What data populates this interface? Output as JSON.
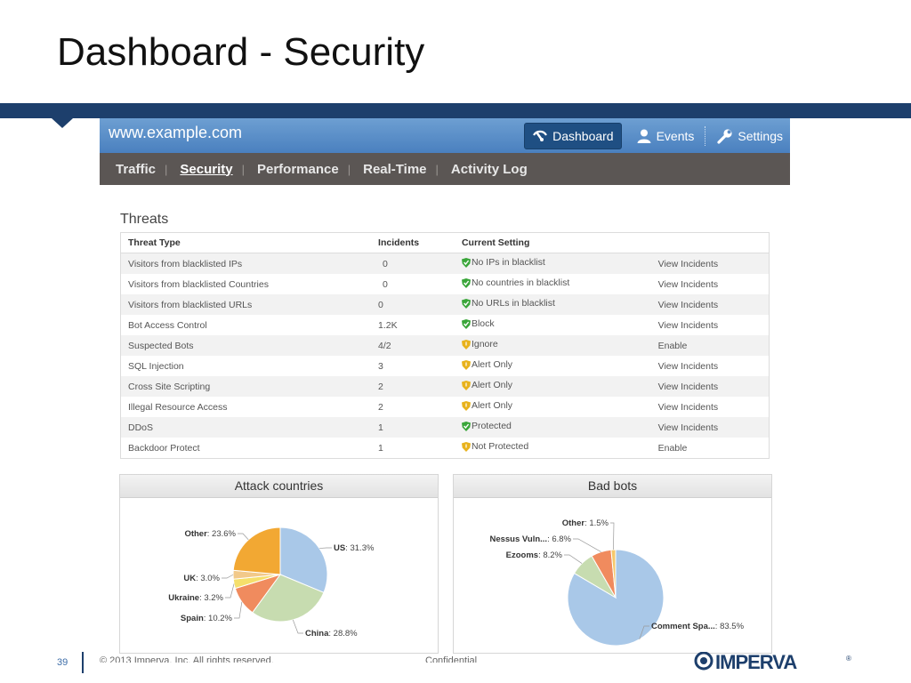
{
  "slide": {
    "title": "Dashboard - Security",
    "page_number": "39",
    "copyright": "© 2013 Imperva, Inc. All rights reserved.",
    "confidential": "Confidential",
    "logo_text": "IMPERVA"
  },
  "app": {
    "site": "www.example.com",
    "top_nav": [
      {
        "label": "Dashboard",
        "icon": "dashboard-icon",
        "active": true
      },
      {
        "label": "Events",
        "icon": "user-icon",
        "active": false
      },
      {
        "label": "Settings",
        "icon": "wrench-icon",
        "active": false
      }
    ],
    "sub_nav": [
      {
        "label": "Traffic",
        "active": false
      },
      {
        "label": "Security",
        "active": true
      },
      {
        "label": "Performance",
        "active": false
      },
      {
        "label": "Real-Time",
        "active": false
      },
      {
        "label": "Activity Log",
        "active": false
      }
    ]
  },
  "threats": {
    "title": "Threats",
    "columns": [
      "Threat Type",
      "Incidents",
      "Current Setting",
      ""
    ],
    "rows": [
      {
        "type": "Visitors from blacklisted IPs",
        "incidents": "0",
        "setting": "No IPs in blacklist",
        "status": "green",
        "action": "View Incidents"
      },
      {
        "type": "Visitors from blacklisted Countries",
        "incidents": "0",
        "setting": "No countries in blacklist",
        "status": "green",
        "action": "View Incidents"
      },
      {
        "type": "Visitors from blacklisted URLs",
        "incidents": "0",
        "setting": "No URLs in blacklist",
        "status": "green",
        "action": "View Incidents"
      },
      {
        "type": "Bot Access Control",
        "incidents": "1.2K",
        "setting": "Block",
        "status": "green",
        "action": "View Incidents"
      },
      {
        "type": "Suspected Bots",
        "incidents": "4/2",
        "setting": "Ignore",
        "status": "yellow",
        "action": "Enable"
      },
      {
        "type": "SQL Injection",
        "incidents": "3",
        "setting": "Alert Only",
        "status": "yellow",
        "action": "View Incidents"
      },
      {
        "type": "Cross Site Scripting",
        "incidents": "2",
        "setting": "Alert Only",
        "status": "yellow",
        "action": "View Incidents"
      },
      {
        "type": "Illegal Resource Access",
        "incidents": "2",
        "setting": "Alert Only",
        "status": "yellow",
        "action": "View Incidents"
      },
      {
        "type": "DDoS",
        "incidents": "1",
        "setting": "Protected",
        "status": "green",
        "action": "View Incidents"
      },
      {
        "type": "Backdoor Protect",
        "incidents": "1",
        "setting": "Not Protected",
        "status": "yellow",
        "action": "Enable"
      }
    ]
  },
  "colors": {
    "status_green": "#3aa63a",
    "status_yellow": "#e8b21c",
    "link": "#2e6db4",
    "header_blue": "#1d3f6c"
  },
  "chart_data": [
    {
      "type": "pie",
      "title": "Attack countries",
      "slices": [
        {
          "name": "US",
          "value": 31.3,
          "label": "31.3%",
          "color": "#a9c8e8"
        },
        {
          "name": "China",
          "value": 28.8,
          "label": "28.8%",
          "color": "#c7dcb0"
        },
        {
          "name": "Spain",
          "value": 10.2,
          "label": "10.2%",
          "color": "#f08b5e"
        },
        {
          "name": "Ukraine",
          "value": 3.2,
          "label": "3.2%",
          "color": "#f5df6b"
        },
        {
          "name": "UK",
          "value": 3.0,
          "label": "3.0%",
          "color": "#f2c98a"
        },
        {
          "name": "Other",
          "value": 23.6,
          "label": "23.6%",
          "color": "#f2a833"
        }
      ]
    },
    {
      "type": "pie",
      "title": "Bad bots",
      "slices": [
        {
          "name": "Comment Spa...",
          "value": 83.5,
          "label": "83.5%",
          "color": "#a9c8e8"
        },
        {
          "name": "Ezooms",
          "value": 8.2,
          "label": "8.2%",
          "color": "#c7dcb0"
        },
        {
          "name": "Nessus Vuln...",
          "value": 6.8,
          "label": "6.8%",
          "color": "#f08b5e"
        },
        {
          "name": "Other",
          "value": 1.5,
          "label": "1.5%",
          "color": "#f5c86b"
        }
      ]
    }
  ]
}
